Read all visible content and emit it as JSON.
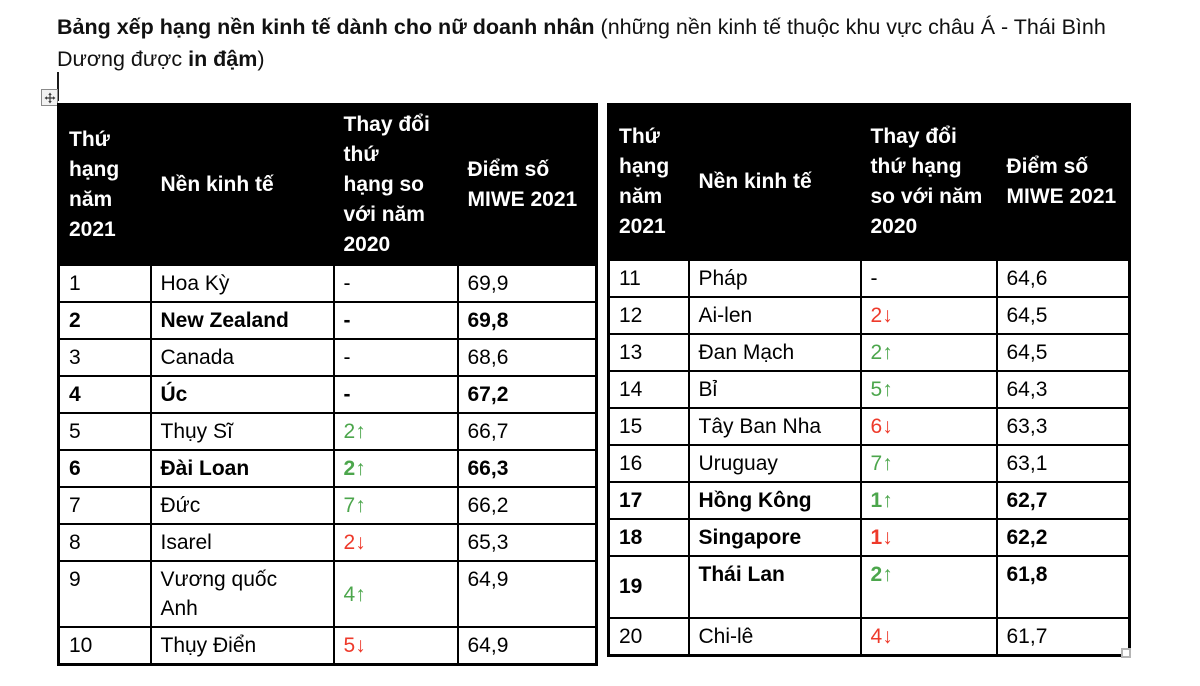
{
  "title": {
    "bold_lead": "Bảng xếp hạng nền kinh tế dành cho nữ doanh nhân",
    "normal_mid": " (những nền kinh tế thuộc khu vực châu Á - Thái Bình Dương được ",
    "bold_emphasis": "in đậm",
    "normal_tail": ")"
  },
  "colors": {
    "positive": "#4CA64C",
    "negative": "#EE3A2B",
    "header_bg": "#000000",
    "header_fg": "#FFFFFF",
    "border": "#000000"
  },
  "glyphs": {
    "up_arrow": "↑",
    "down_arrow": "↓"
  },
  "icons": {
    "table_move_handle": "move-icon",
    "table_resize_handle": "resize-handle"
  },
  "columns": [
    "Thứ hạng năm 2021",
    "Nền kinh tế",
    "Thay đổi thứ hạng so với năm 2020",
    "Điểm số MIWE 2021"
  ],
  "tables": [
    {
      "rows": [
        {
          "rank": "1",
          "economy": "Hoa Kỳ",
          "change": {
            "value": "-",
            "direction": "none"
          },
          "score": "69,9",
          "bold": false
        },
        {
          "rank": "2",
          "economy": "New Zealand",
          "change": {
            "value": "-",
            "direction": "none"
          },
          "score": "69,8",
          "bold": true
        },
        {
          "rank": "3",
          "economy": "Canada",
          "change": {
            "value": "-",
            "direction": "none"
          },
          "score": "68,6",
          "bold": false
        },
        {
          "rank": "4",
          "economy": "Úc",
          "change": {
            "value": "-",
            "direction": "none"
          },
          "score": "67,2",
          "bold": true
        },
        {
          "rank": "5",
          "economy": "Thụy Sĩ",
          "change": {
            "value": "2",
            "direction": "up"
          },
          "score": "66,7",
          "bold": false
        },
        {
          "rank": "6",
          "economy": "Đài Loan",
          "change": {
            "value": "2",
            "direction": "up"
          },
          "score": "66,3",
          "bold": true
        },
        {
          "rank": "7",
          "economy": "Đức",
          "change": {
            "value": "7",
            "direction": "up"
          },
          "score": "66,2",
          "bold": false
        },
        {
          "rank": "8",
          "economy": "Isarel",
          "change": {
            "value": "2",
            "direction": "down"
          },
          "score": "65,3",
          "bold": false
        },
        {
          "rank": "9",
          "economy": "Vương quốc Anh",
          "change": {
            "value": "4",
            "direction": "up"
          },
          "score": "64,9",
          "bold": false,
          "wrap": true
        },
        {
          "rank": "10",
          "economy": "Thụy Điển",
          "change": {
            "value": "5",
            "direction": "down"
          },
          "score": "64,9",
          "bold": false
        }
      ]
    },
    {
      "rows": [
        {
          "rank": "11",
          "economy": "Pháp",
          "change": {
            "value": "-",
            "direction": "none"
          },
          "score": "64,6",
          "bold": false
        },
        {
          "rank": "12",
          "economy": "Ai-len",
          "change": {
            "value": "2",
            "direction": "down"
          },
          "score": "64,5",
          "bold": false
        },
        {
          "rank": "13",
          "economy": "Đan Mạch",
          "change": {
            "value": "2",
            "direction": "up"
          },
          "score": "64,5",
          "bold": false
        },
        {
          "rank": "14",
          "economy": "Bỉ",
          "change": {
            "value": "5",
            "direction": "up"
          },
          "score": "64,3",
          "bold": false
        },
        {
          "rank": "15",
          "economy": "Tây Ban Nha",
          "change": {
            "value": "6",
            "direction": "down"
          },
          "score": "63,3",
          "bold": false
        },
        {
          "rank": "16",
          "economy": "Uruguay",
          "change": {
            "value": "7",
            "direction": "up"
          },
          "score": "63,1",
          "bold": false
        },
        {
          "rank": "17",
          "economy": "Hồng Kông",
          "change": {
            "value": "1",
            "direction": "up"
          },
          "score": "62,7",
          "bold": true
        },
        {
          "rank": "18",
          "economy": "Singapore",
          "change": {
            "value": "1",
            "direction": "down"
          },
          "score": "62,2",
          "bold": true
        },
        {
          "rank": "19",
          "economy": "Thái Lan",
          "change": {
            "value": "2",
            "direction": "up"
          },
          "score": "61,8",
          "bold": true
        },
        {
          "rank": "20",
          "economy": "Chi-lê",
          "change": {
            "value": "4",
            "direction": "down"
          },
          "score": "61,7",
          "bold": false
        }
      ]
    }
  ]
}
